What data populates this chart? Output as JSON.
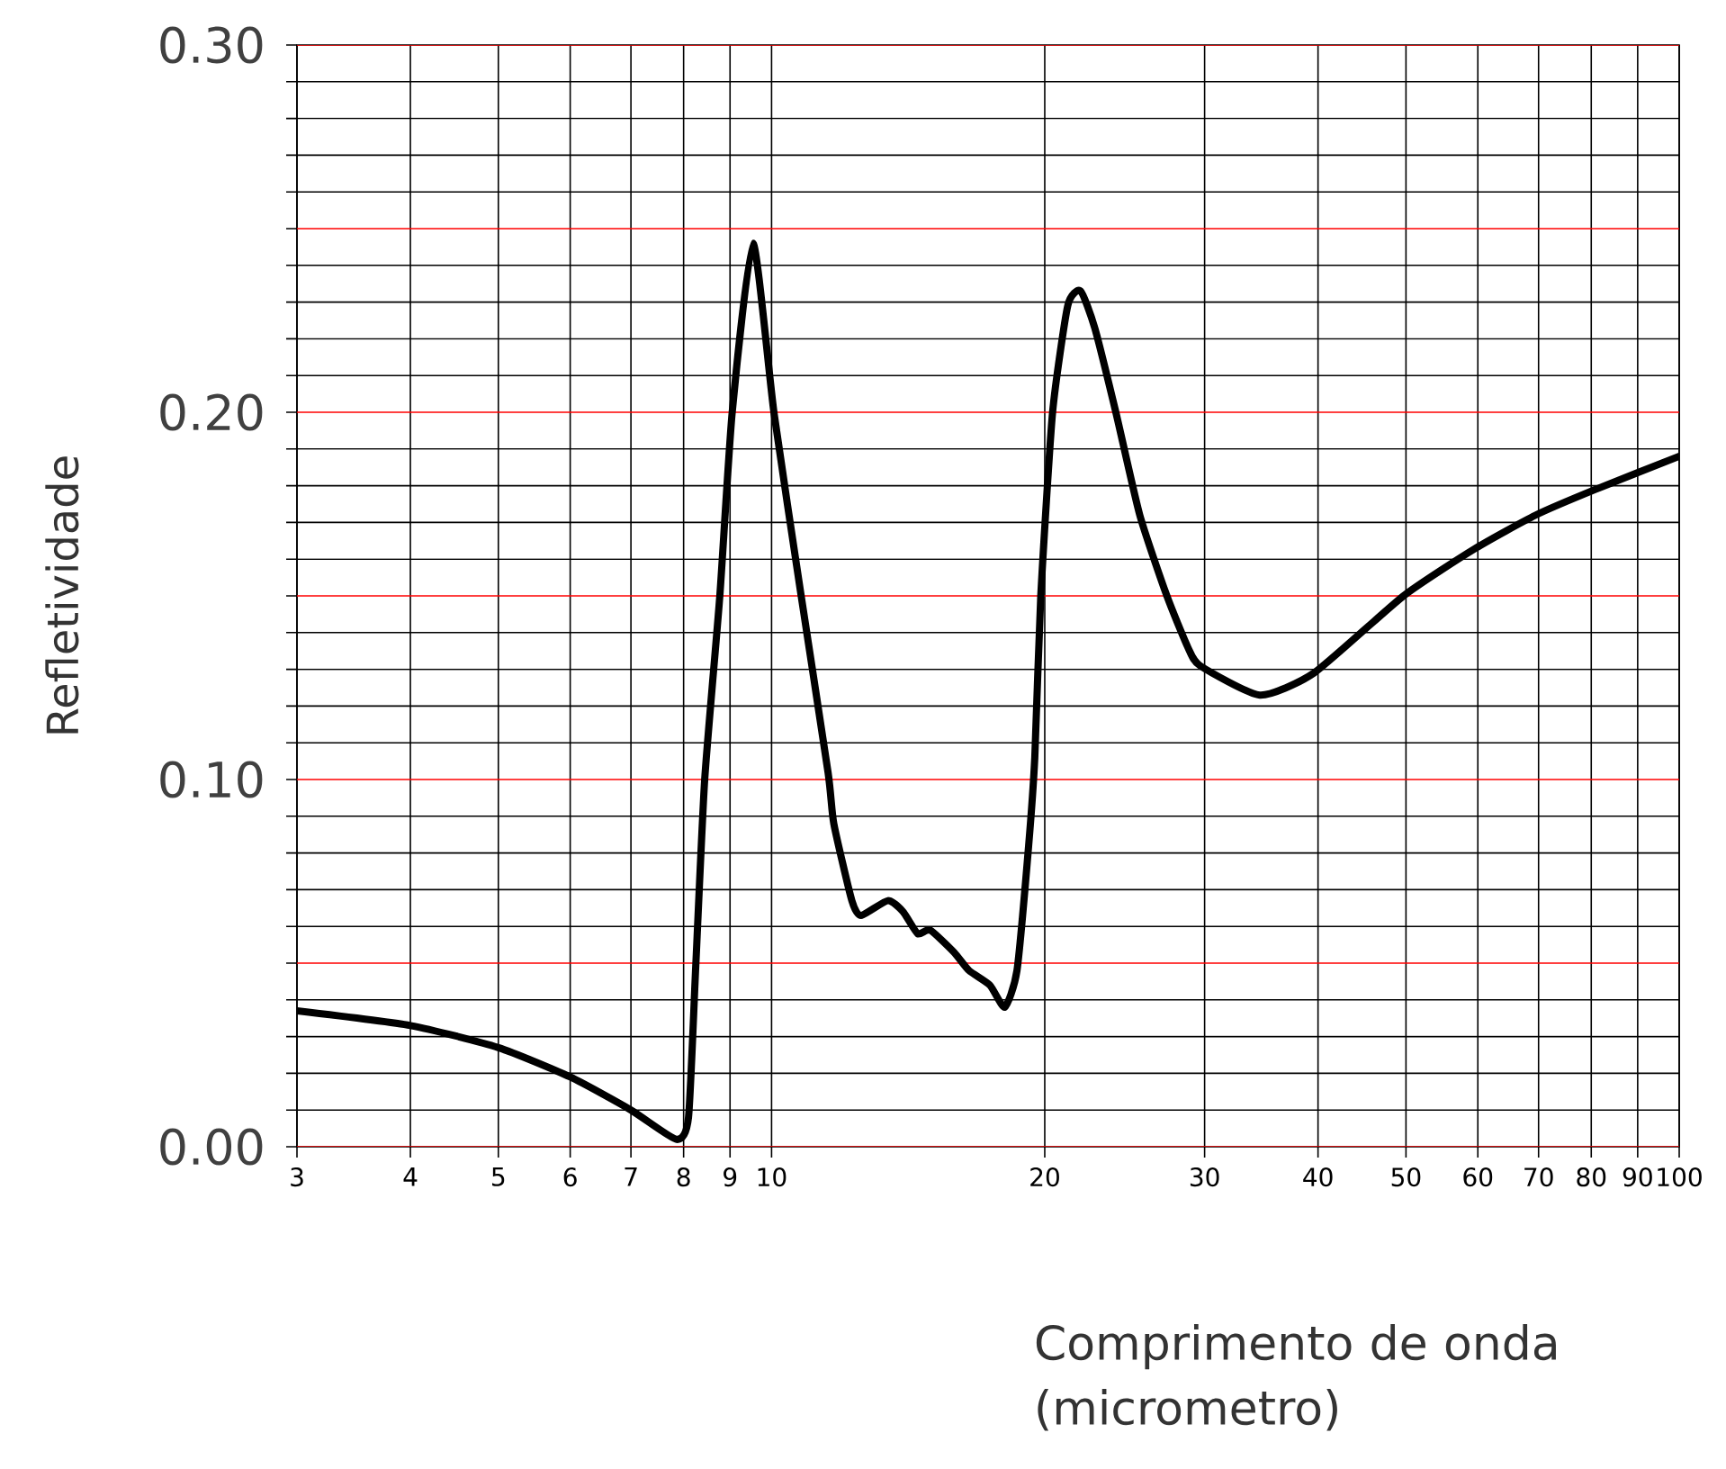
{
  "chart_data": {
    "type": "line",
    "xlabel": "Comprimento de onda (micrometro)",
    "ylabel": "Refletividade",
    "log": "x",
    "grid": true,
    "line_style": "solid",
    "marker": "none",
    "xlim": [
      3,
      100
    ],
    "ylim": [
      0,
      0.3
    ],
    "xticks": [
      3,
      4,
      5,
      6,
      7,
      8,
      9,
      10,
      20,
      30,
      40,
      50,
      60,
      70,
      80,
      90,
      100
    ],
    "yticks": [
      {
        "value": 0,
        "label": "0.00"
      },
      {
        "value": 0.01,
        "label": null
      },
      {
        "value": 0.02,
        "label": null
      },
      {
        "value": 0.03,
        "label": null
      },
      {
        "value": 0.04,
        "label": null
      },
      {
        "value": 0.05,
        "label": null
      },
      {
        "value": 0.06,
        "label": null
      },
      {
        "value": 0.07,
        "label": null
      },
      {
        "value": 0.08,
        "label": null
      },
      {
        "value": 0.09,
        "label": null
      },
      {
        "value": 0.1,
        "label": "0.10"
      },
      {
        "value": 0.11,
        "label": null
      },
      {
        "value": 0.12,
        "label": null
      },
      {
        "value": 0.13,
        "label": null
      },
      {
        "value": 0.14,
        "label": null
      },
      {
        "value": 0.15,
        "label": null
      },
      {
        "value": 0.16,
        "label": null
      },
      {
        "value": 0.17,
        "label": null
      },
      {
        "value": 0.18,
        "label": null
      },
      {
        "value": 0.19,
        "label": null
      },
      {
        "value": 0.2,
        "label": "0.20"
      },
      {
        "value": 0.21,
        "label": null
      },
      {
        "value": 0.22,
        "label": null
      },
      {
        "value": 0.23,
        "label": null
      },
      {
        "value": 0.24,
        "label": null
      },
      {
        "value": 0.25,
        "label": null
      },
      {
        "value": 0.26,
        "label": null
      },
      {
        "value": 0.27,
        "label": null
      },
      {
        "value": 0.28,
        "label": null
      },
      {
        "value": 0.29,
        "label": null
      },
      {
        "value": 0.3,
        "label": "0.30"
      }
    ],
    "series": [
      {
        "color": "#000000",
        "x": [
          3,
          4,
          5,
          6,
          7,
          7.86,
          8.1,
          8.25,
          8.44,
          8.77,
          9.05,
          9.54,
          10.06,
          10.78,
          11.54,
          11.71,
          12.26,
          12.55,
          13.43,
          13.96,
          14.49,
          14.95,
          15.88,
          16.5,
          17.4,
          18.07,
          18.64,
          19.2,
          19.5,
          19.8,
          20.4,
          21.2,
          21.9,
          22.7,
          23.95,
          25.45,
          27.26,
          28.75,
          29.65,
          34.5,
          39.6,
          49.7,
          59.7,
          69.5,
          80.9,
          100
        ],
        "values": [
          0.037,
          0.033,
          0.027,
          0.019,
          0.01,
          0.002,
          0.008,
          0.049,
          0.1,
          0.15,
          0.2,
          0.246,
          0.2,
          0.15,
          0.102,
          0.088,
          0.067,
          0.063,
          0.067,
          0.064,
          0.058,
          0.059,
          0.053,
          0.048,
          0.044,
          0.038,
          0.048,
          0.082,
          0.106,
          0.15,
          0.2,
          0.229,
          0.233,
          0.223,
          0.2,
          0.172,
          0.15,
          0.136,
          0.131,
          0.123,
          0.129,
          0.15,
          0.163,
          0.172,
          0.179,
          0.188
        ]
      }
    ]
  }
}
